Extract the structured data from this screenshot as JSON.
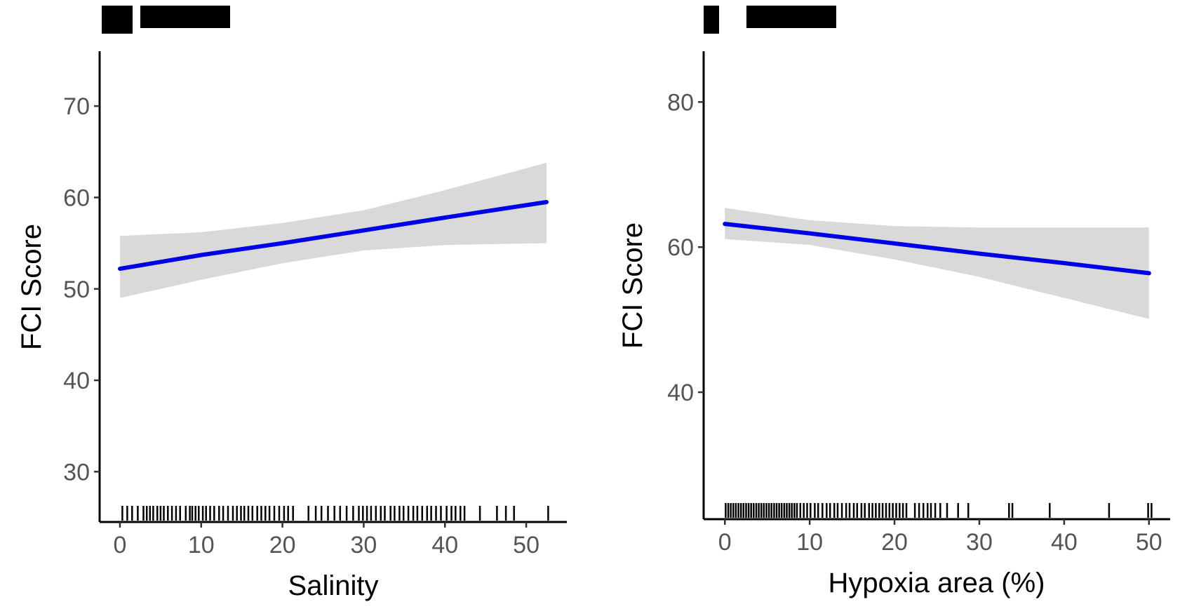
{
  "chart_data": [
    {
      "type": "line",
      "panel_label": "",
      "xlabel": "Salinity",
      "ylabel": "FCI Score",
      "xlim": [
        -2.5,
        55
      ],
      "ylim": [
        24.5,
        76
      ],
      "xticks": [
        0,
        10,
        20,
        30,
        40,
        50
      ],
      "xtick_labels": [
        "0",
        "10",
        "20",
        "30",
        "40",
        "50"
      ],
      "yticks": [
        30,
        40,
        50,
        60,
        70
      ],
      "ytick_labels": [
        "30",
        "40",
        "50",
        "60",
        "70"
      ],
      "grid": false,
      "series": [
        {
          "x": [
            0,
            10,
            20,
            30,
            40,
            52.5
          ],
          "y": [
            52.2,
            53.7,
            55.0,
            56.4,
            57.8,
            59.5
          ],
          "ci_lower": [
            49.0,
            51.0,
            52.8,
            54.2,
            54.8,
            55.0
          ],
          "ci_upper": [
            55.8,
            56.2,
            57.2,
            58.6,
            60.8,
            63.8
          ],
          "color": "#0000e6"
        }
      ],
      "rug_x": [
        0.3,
        0.9,
        1.5,
        2.2,
        2.9,
        3.3,
        3.7,
        4.1,
        4.6,
        5.0,
        5.4,
        5.9,
        6.4,
        6.9,
        7.4,
        8.1,
        8.6,
        8.9,
        9.3,
        9.7,
        10.2,
        10.6,
        11.1,
        11.6,
        12.2,
        12.7,
        13.3,
        13.9,
        14.4,
        14.9,
        15.3,
        15.8,
        16.3,
        16.9,
        17.4,
        17.9,
        18.4,
        19.0,
        19.6,
        20.2,
        20.7,
        21.3,
        23.2,
        24.1,
        24.8,
        25.6,
        26.4,
        27.1,
        27.9,
        28.7,
        29.4,
        29.9,
        30.4,
        30.9,
        31.5,
        32.1,
        32.6,
        33.3,
        33.8,
        34.4,
        34.9,
        35.5,
        36.1,
        36.6,
        37.2,
        37.8,
        38.3,
        38.9,
        39.5,
        40.2,
        40.8,
        41.3,
        41.9,
        42.4,
        44.3,
        46.4,
        47.5,
        48.5,
        52.7
      ]
    },
    {
      "type": "line",
      "panel_label": "",
      "xlabel": "Hypoxia area (%)",
      "ylabel": "FCI Score",
      "xlim": [
        -2.5,
        52.5
      ],
      "ylim": [
        22.5,
        87
      ],
      "xticks": [
        0,
        10,
        20,
        30,
        40,
        50
      ],
      "xtick_labels": [
        "0",
        "10",
        "20",
        "30",
        "40",
        "50"
      ],
      "yticks": [
        40,
        60,
        80
      ],
      "ytick_labels": [
        "40",
        "60",
        "80"
      ],
      "grid": false,
      "series": [
        {
          "x": [
            0,
            10,
            20,
            30,
            40,
            50
          ],
          "y": [
            63.2,
            61.9,
            60.5,
            59.1,
            57.8,
            56.4
          ],
          "ci_lower": [
            61.1,
            60.3,
            58.3,
            55.9,
            53.0,
            50.1
          ],
          "ci_upper": [
            65.4,
            63.7,
            62.9,
            62.7,
            62.7,
            62.7
          ],
          "color": "#0000e6"
        }
      ],
      "rug_x": [
        0.1,
        0.4,
        0.7,
        1.0,
        1.3,
        1.6,
        1.9,
        2.2,
        2.5,
        2.8,
        3.1,
        3.4,
        3.7,
        4.0,
        4.3,
        4.6,
        4.9,
        5.2,
        5.5,
        5.8,
        6.1,
        6.4,
        6.7,
        7.0,
        7.3,
        7.6,
        7.9,
        8.2,
        8.5,
        8.9,
        9.3,
        9.7,
        10.1,
        10.6,
        11.0,
        11.5,
        12.0,
        12.4,
        12.9,
        13.3,
        13.8,
        14.3,
        14.7,
        15.2,
        15.6,
        16.1,
        16.5,
        17.0,
        17.4,
        17.8,
        18.2,
        18.6,
        19.0,
        19.4,
        19.8,
        20.2,
        20.6,
        21.0,
        21.4,
        22.4,
        22.9,
        23.4,
        23.9,
        24.3,
        24.8,
        25.4,
        26.2,
        27.5,
        28.7,
        33.5,
        33.9,
        38.3,
        45.3,
        49.9,
        50.3
      ]
    }
  ]
}
